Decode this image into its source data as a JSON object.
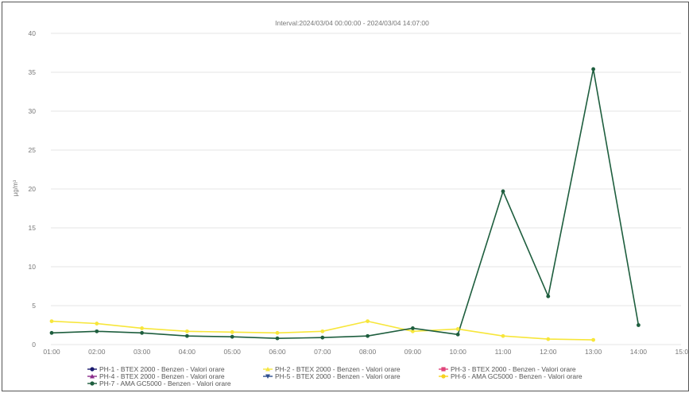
{
  "chart_data": {
    "type": "line",
    "title": "Interval:2024/03/04 00:00:00 - 2024/03/04 14:07:00",
    "ylabel": "µg/m³",
    "xlabel": "",
    "ylim": [
      0,
      40
    ],
    "yticks": [
      "0",
      "5",
      "10",
      "15",
      "20",
      "25",
      "30",
      "35",
      "40"
    ],
    "categories": [
      "01:00",
      "02:00",
      "03:00",
      "04:00",
      "05:00",
      "06:00",
      "07:00",
      "08:00",
      "09:00",
      "10:00",
      "11:00",
      "12:00",
      "13:00",
      "14:00",
      "15:00"
    ],
    "grid": true,
    "legend_position": "bottom",
    "legend": [
      {
        "name": "PH-1 - BTEX 2000 - Benzen - Valori orare",
        "color": "#1a1a6e",
        "marker": "circle"
      },
      {
        "name": "PH-2 - BTEX 2000 - Benzen - Valori orare",
        "color": "#f5e642",
        "marker": "triangle"
      },
      {
        "name": "PH-3 - BTEX 2000 - Benzen - Valori orare",
        "color": "#e0457b",
        "marker": "square"
      },
      {
        "name": "PH-4 - BTEX 2000 - Benzen - Valori orare",
        "color": "#8a2b8a",
        "marker": "triangle"
      },
      {
        "name": "PH-5 - BTEX 2000 - Benzen - Valori orare",
        "color": "#2f4f8f",
        "marker": "triangle-down"
      },
      {
        "name": "PH-6 - AMA GC5000 - Benzen - Valori orare",
        "color": "#f7d21e",
        "marker": "circle"
      },
      {
        "name": "PH-7 - AMA GC5000 - Benzen - Valori orare",
        "color": "#1e5e3e",
        "marker": "circle"
      }
    ],
    "series": [
      {
        "name": "PH-6 - AMA GC5000 - Benzen - Valori orare",
        "color": "#f7e63a",
        "values": [
          3.0,
          2.7,
          2.1,
          1.7,
          1.6,
          1.5,
          1.7,
          3.0,
          1.7,
          2.0,
          1.1,
          0.7,
          0.6,
          null,
          null
        ]
      },
      {
        "name": "PH-7 - AMA GC5000 - Benzen - Valori orare",
        "color": "#1e5e3e",
        "values": [
          1.5,
          1.7,
          1.5,
          1.1,
          1.0,
          0.8,
          0.9,
          1.1,
          2.1,
          1.3,
          19.7,
          6.2,
          35.4,
          2.5,
          null
        ]
      }
    ]
  }
}
